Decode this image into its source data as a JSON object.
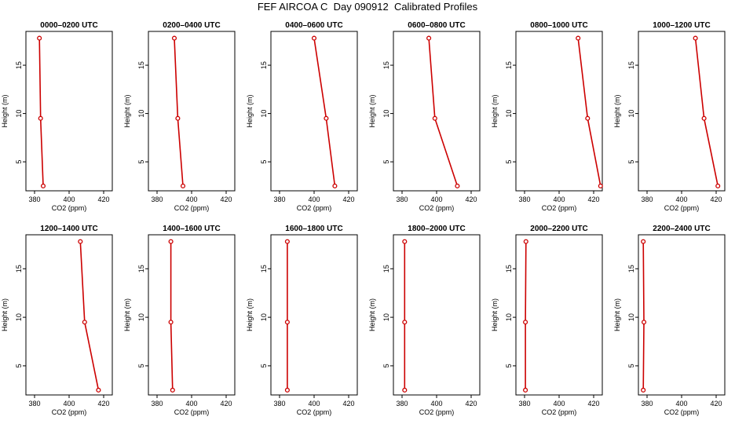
{
  "page_title": "FEF AIRCOA C  Day 090912  Calibrated Profiles",
  "style": {
    "line_color": "#cc0000",
    "marker_color": "#cc0000",
    "axis_color": "#000000"
  },
  "chart_data": [
    {
      "type": "line",
      "title": "0000–0200 UTC",
      "xlabel": "CO2 (ppm)",
      "ylabel": "Height (m)",
      "xlim": [
        375,
        425
      ],
      "ylim": [
        2,
        18.5
      ],
      "xticks": [
        380,
        400,
        420
      ],
      "yticks": [
        5,
        10,
        15
      ],
      "series": [
        {
          "x": [
            385,
            383.5,
            382.8
          ],
          "y": [
            2.5,
            9.5,
            17.8
          ]
        }
      ]
    },
    {
      "type": "line",
      "title": "0200–0400 UTC",
      "xlabel": "CO2 (ppm)",
      "ylabel": "Height (m)",
      "xlim": [
        375,
        425
      ],
      "ylim": [
        2,
        18.5
      ],
      "xticks": [
        380,
        400,
        420
      ],
      "yticks": [
        5,
        10,
        15
      ],
      "series": [
        {
          "x": [
            395,
            392,
            390
          ],
          "y": [
            2.5,
            9.5,
            17.8
          ]
        }
      ]
    },
    {
      "type": "line",
      "title": "0400–0600 UTC",
      "xlabel": "CO2 (ppm)",
      "ylabel": "Height (m)",
      "xlim": [
        375,
        425
      ],
      "ylim": [
        2,
        18.5
      ],
      "xticks": [
        380,
        400,
        420
      ],
      "yticks": [
        5,
        10,
        15
      ],
      "series": [
        {
          "x": [
            412,
            407,
            400
          ],
          "y": [
            2.5,
            9.5,
            17.8
          ]
        }
      ]
    },
    {
      "type": "line",
      "title": "0600–0800 UTC",
      "xlabel": "CO2 (ppm)",
      "ylabel": "Height (m)",
      "xlim": [
        375,
        425
      ],
      "ylim": [
        2,
        18.5
      ],
      "xticks": [
        380,
        400,
        420
      ],
      "yticks": [
        5,
        10,
        15
      ],
      "series": [
        {
          "x": [
            412,
            399,
            395.5
          ],
          "y": [
            2.5,
            9.5,
            17.8
          ]
        }
      ]
    },
    {
      "type": "line",
      "title": "0800–1000 UTC",
      "xlabel": "CO2 (ppm)",
      "ylabel": "Height (m)",
      "xlim": [
        375,
        425
      ],
      "ylim": [
        2,
        18.5
      ],
      "xticks": [
        380,
        400,
        420
      ],
      "yticks": [
        5,
        10,
        15
      ],
      "series": [
        {
          "x": [
            424,
            416.5,
            411
          ],
          "y": [
            2.5,
            9.5,
            17.8
          ]
        }
      ]
    },
    {
      "type": "line",
      "title": "1000–1200 UTC",
      "xlabel": "CO2 (ppm)",
      "ylabel": "Height (m)",
      "xlim": [
        375,
        425
      ],
      "ylim": [
        2,
        18.5
      ],
      "xticks": [
        380,
        400,
        420
      ],
      "yticks": [
        5,
        10,
        15
      ],
      "series": [
        {
          "x": [
            421,
            413,
            408
          ],
          "y": [
            2.5,
            9.5,
            17.8
          ]
        }
      ]
    },
    {
      "type": "line",
      "title": "1200–1400 UTC",
      "xlabel": "CO2 (ppm)",
      "ylabel": "Height (m)",
      "xlim": [
        375,
        425
      ],
      "ylim": [
        2,
        18.5
      ],
      "xticks": [
        380,
        400,
        420
      ],
      "yticks": [
        5,
        10,
        15
      ],
      "series": [
        {
          "x": [
            417,
            409,
            406.5
          ],
          "y": [
            2.5,
            9.5,
            17.8
          ]
        }
      ]
    },
    {
      "type": "line",
      "title": "1400–1600 UTC",
      "xlabel": "CO2 (ppm)",
      "ylabel": "Height (m)",
      "xlim": [
        375,
        425
      ],
      "ylim": [
        2,
        18.5
      ],
      "xticks": [
        380,
        400,
        420
      ],
      "yticks": [
        5,
        10,
        15
      ],
      "series": [
        {
          "x": [
            389,
            388,
            388
          ],
          "y": [
            2.5,
            9.5,
            17.8
          ]
        }
      ]
    },
    {
      "type": "line",
      "title": "1600–1800 UTC",
      "xlabel": "CO2 (ppm)",
      "ylabel": "Height (m)",
      "xlim": [
        375,
        425
      ],
      "ylim": [
        2,
        18.5
      ],
      "xticks": [
        380,
        400,
        420
      ],
      "yticks": [
        5,
        10,
        15
      ],
      "series": [
        {
          "x": [
            384.5,
            384.5,
            384.5
          ],
          "y": [
            2.5,
            9.5,
            17.8
          ]
        }
      ]
    },
    {
      "type": "line",
      "title": "1800–2000 UTC",
      "xlabel": "CO2 (ppm)",
      "ylabel": "Height (m)",
      "xlim": [
        375,
        425
      ],
      "ylim": [
        2,
        18.5
      ],
      "xticks": [
        380,
        400,
        420
      ],
      "yticks": [
        5,
        10,
        15
      ],
      "series": [
        {
          "x": [
            381.5,
            381.5,
            381.5
          ],
          "y": [
            2.5,
            9.5,
            17.8
          ]
        }
      ]
    },
    {
      "type": "line",
      "title": "2000–2200 UTC",
      "xlabel": "CO2 (ppm)",
      "ylabel": "Height (m)",
      "xlim": [
        375,
        425
      ],
      "ylim": [
        2,
        18.5
      ],
      "xticks": [
        380,
        400,
        420
      ],
      "yticks": [
        5,
        10,
        15
      ],
      "series": [
        {
          "x": [
            380.5,
            380.5,
            380.8
          ],
          "y": [
            2.5,
            9.5,
            17.8
          ]
        }
      ]
    },
    {
      "type": "line",
      "title": "2200–2400 UTC",
      "xlabel": "CO2 (ppm)",
      "ylabel": "Height (m)",
      "xlim": [
        375,
        425
      ],
      "ylim": [
        2,
        18.5
      ],
      "xticks": [
        380,
        400,
        420
      ],
      "yticks": [
        5,
        10,
        15
      ],
      "series": [
        {
          "x": [
            377.8,
            378.2,
            377.8
          ],
          "y": [
            2.5,
            9.5,
            17.8
          ]
        }
      ]
    }
  ]
}
